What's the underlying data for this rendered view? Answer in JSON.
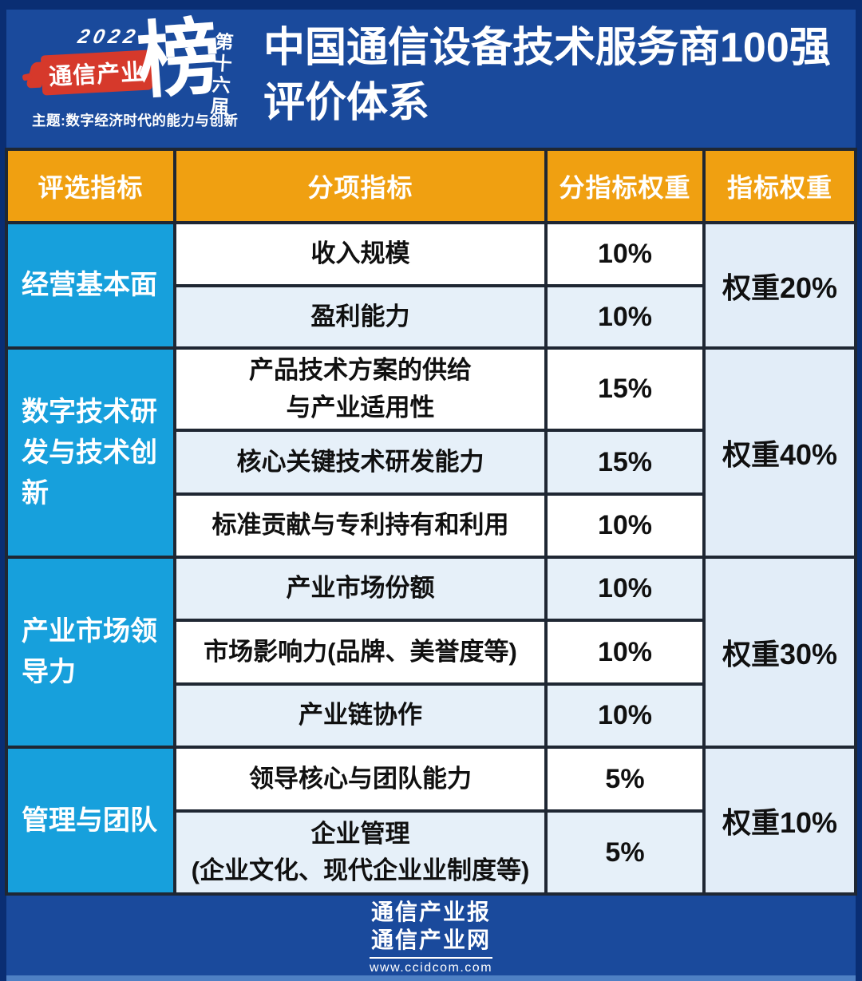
{
  "colors": {
    "frame_navy": "#0A2E73",
    "background_blue": "#1A4A9C",
    "header_orange": "#F0A011",
    "group_cyan": "#17A0DC",
    "banner_red": "#D6392B",
    "row_light_blue": "#E6F0F9",
    "weight_column_bg": "#E2EDF8",
    "table_border": "#1F2733",
    "bottom_strip": "#4E80C4"
  },
  "header": {
    "year": "2022",
    "brand": "通信产业",
    "bang": "榜",
    "edition": "第十六届",
    "theme": "主题:数字经济时代的能力与创新",
    "title_line1": "中国通信设备技术服务商100强",
    "title_line2": "评价体系"
  },
  "table": {
    "columns": [
      "评选指标",
      "分项指标",
      "分指标权重",
      "指标权重"
    ],
    "groups": [
      {
        "name": "经营基本面",
        "weight": "权重20%",
        "rows": [
          {
            "label": "收入规模",
            "weight": "10%"
          },
          {
            "label": "盈利能力",
            "weight": "10%"
          }
        ]
      },
      {
        "name": "数字技术研发与技术创新",
        "weight": "权重40%",
        "rows": [
          {
            "label": "产品技术方案的供给\n与产业适用性",
            "weight": "15%"
          },
          {
            "label": "核心关键技术研发能力",
            "weight": "15%"
          },
          {
            "label": "标准贡献与专利持有和利用",
            "weight": "10%"
          }
        ]
      },
      {
        "name": "产业市场领导力",
        "weight": "权重30%",
        "rows": [
          {
            "label": "产业市场份额",
            "weight": "10%"
          },
          {
            "label": "市场影响力(品牌、美誉度等)",
            "weight": "10%"
          },
          {
            "label": "产业链协作",
            "weight": "10%"
          }
        ]
      },
      {
        "name": "管理与团队",
        "weight": "权重10%",
        "rows": [
          {
            "label": "领导核心与团队能力",
            "weight": "5%"
          },
          {
            "label": "企业管理\n(企业文化、现代企业业制度等)",
            "weight": "5%"
          }
        ]
      }
    ]
  },
  "footer": {
    "brand_line1": "通信产业报",
    "brand_line2": "通信产业网",
    "url": "www.ccidcom.com"
  }
}
